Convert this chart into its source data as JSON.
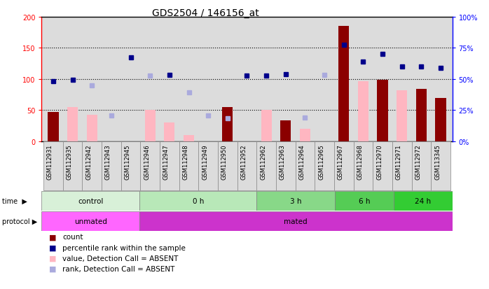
{
  "title": "GDS2504 / 146156_at",
  "samples": [
    "GSM112931",
    "GSM112935",
    "GSM112942",
    "GSM112943",
    "GSM112945",
    "GSM112946",
    "GSM112947",
    "GSM112948",
    "GSM112949",
    "GSM112950",
    "GSM112952",
    "GSM112962",
    "GSM112963",
    "GSM112964",
    "GSM112965",
    "GSM112967",
    "GSM112968",
    "GSM112970",
    "GSM112971",
    "GSM112972",
    "GSM113345"
  ],
  "count_present": [
    47,
    null,
    null,
    null,
    null,
    null,
    null,
    null,
    null,
    55,
    null,
    null,
    33,
    null,
    null,
    185,
    null,
    99,
    null,
    84,
    69
  ],
  "count_absent": [
    null,
    55,
    43,
    null,
    null,
    50,
    30,
    10,
    null,
    null,
    null,
    50,
    null,
    20,
    null,
    null,
    97,
    null,
    82,
    null,
    null
  ],
  "rank_present": [
    97,
    99,
    null,
    null,
    135,
    null,
    107,
    null,
    null,
    null,
    105,
    106,
    108,
    null,
    null,
    155,
    128,
    140,
    120,
    120,
    118
  ],
  "rank_absent": [
    null,
    null,
    90,
    41,
    null,
    106,
    null,
    78,
    41,
    37,
    null,
    null,
    null,
    38,
    107,
    null,
    null,
    null,
    null,
    null,
    null
  ],
  "color_count_present": "#8B0000",
  "color_count_absent": "#FFB6C1",
  "color_rank_present": "#00008B",
  "color_rank_absent": "#AAAADD",
  "yticks_left": [
    0,
    50,
    100,
    150,
    200
  ],
  "yticks_right": [
    0,
    25,
    50,
    75,
    100
  ],
  "ytick_labels_right": [
    "0%",
    "25%",
    "50%",
    "75%",
    "100%"
  ],
  "gridlines": [
    50,
    100,
    150
  ],
  "bg_color": "#DCDCDC",
  "time_groups": [
    {
      "label": "control",
      "start": 0,
      "end": 5,
      "color": "#D8F0D8"
    },
    {
      "label": "0 h",
      "start": 5,
      "end": 11,
      "color": "#B8E8B8"
    },
    {
      "label": "3 h",
      "start": 11,
      "end": 15,
      "color": "#88D888"
    },
    {
      "label": "6 h",
      "start": 15,
      "end": 18,
      "color": "#55CC55"
    },
    {
      "label": "24 h",
      "start": 18,
      "end": 21,
      "color": "#33CC33"
    }
  ],
  "protocol_groups": [
    {
      "label": "unmated",
      "start": 0,
      "end": 5,
      "color": "#FF66FF"
    },
    {
      "label": "mated",
      "start": 5,
      "end": 21,
      "color": "#CC33CC"
    }
  ]
}
